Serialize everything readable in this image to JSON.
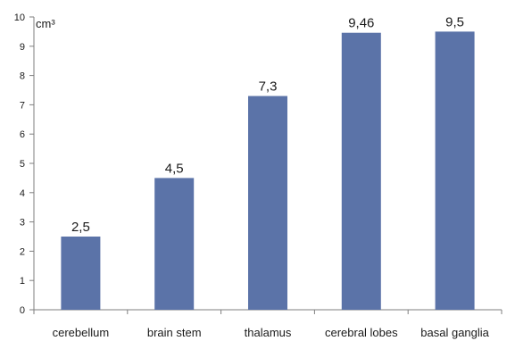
{
  "chart_data": {
    "type": "bar",
    "unit_label": "cm³",
    "categories": [
      "cerebellum",
      "brain stem",
      "thalamus",
      "cerebral lobes",
      "basal ganglia"
    ],
    "values": [
      2.5,
      4.5,
      7.3,
      9.46,
      9.5
    ],
    "data_labels": [
      "2,5",
      "4,5",
      "7,3",
      "9,46",
      "9,5"
    ],
    "y_ticks": [
      0,
      1,
      2,
      3,
      4,
      5,
      6,
      7,
      8,
      9,
      10
    ],
    "ylim": [
      0,
      10
    ],
    "bar_color": "#5b73a8",
    "axis_color": "#7f7f7f",
    "grid": false,
    "legend": "none"
  }
}
